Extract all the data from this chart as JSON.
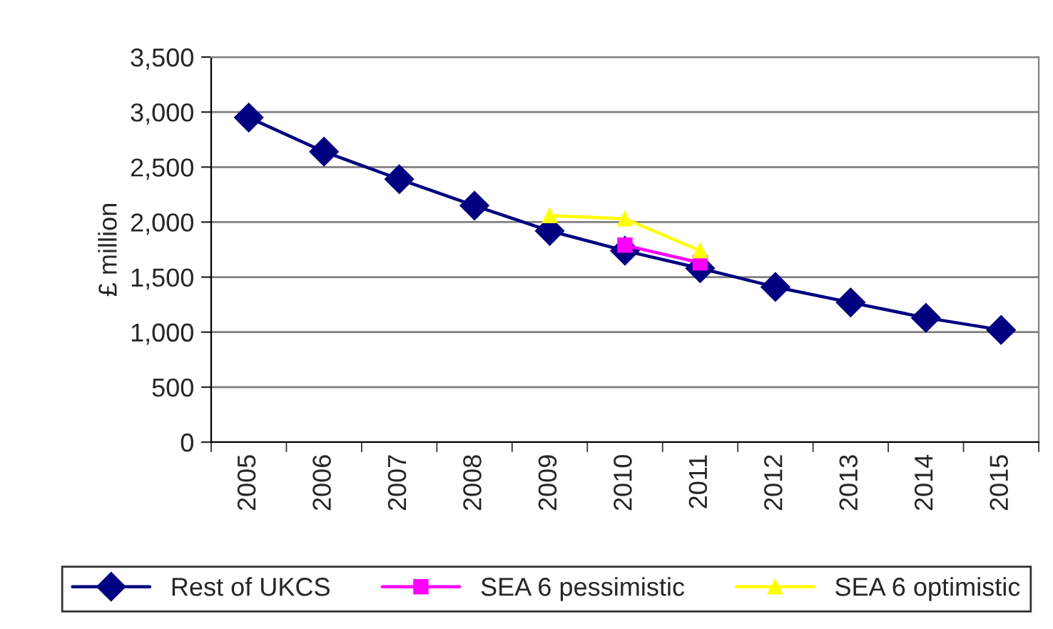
{
  "chart_data": {
    "type": "line",
    "ylabel": "£ million",
    "categories": [
      "2005",
      "2006",
      "2007",
      "2008",
      "2009",
      "2010",
      "2011",
      "2012",
      "2013",
      "2014",
      "2015"
    ],
    "series": [
      {
        "name": "Rest of UKCS",
        "color": "#000080",
        "marker": "diamond",
        "values": [
          2950,
          2640,
          2390,
          2150,
          1920,
          1740,
          1580,
          1410,
          1270,
          1130,
          1020
        ]
      },
      {
        "name": "SEA 6 pessimistic",
        "color": "#ff00ff",
        "marker": "square",
        "values": [
          null,
          null,
          null,
          null,
          null,
          1790,
          1630,
          null,
          null,
          null,
          null
        ]
      },
      {
        "name": "SEA 6 optimistic",
        "color": "#ffff00",
        "marker": "triangle",
        "values": [
          null,
          null,
          null,
          null,
          2060,
          2030,
          1740,
          null,
          null,
          null,
          null
        ]
      }
    ],
    "ylim": [
      0,
      3500
    ],
    "yticks": [
      {
        "value": 0,
        "label": "0"
      },
      {
        "value": 500,
        "label": "500"
      },
      {
        "value": 1000,
        "label": "1,000"
      },
      {
        "value": 1500,
        "label": "1,500"
      },
      {
        "value": 2000,
        "label": "2,000"
      },
      {
        "value": 2500,
        "label": "2,500"
      },
      {
        "value": 3000,
        "label": "3,000"
      },
      {
        "value": 3500,
        "label": "3,500"
      }
    ],
    "grid": "y",
    "legend": "bottom"
  }
}
